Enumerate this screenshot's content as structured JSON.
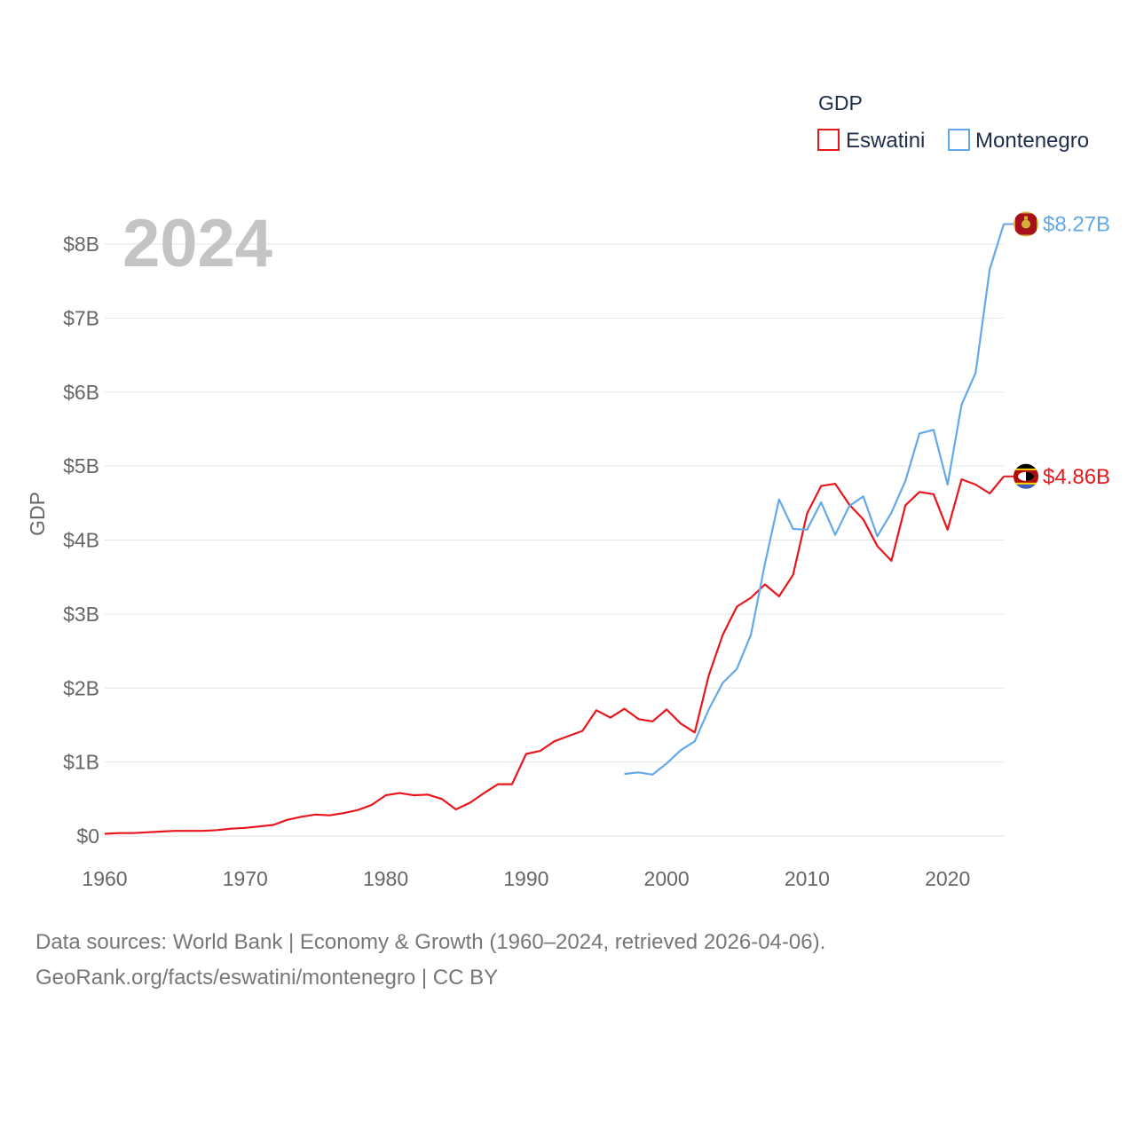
{
  "chart_data": {
    "type": "line",
    "title": "2024",
    "ylabel": "GDP",
    "xlabel": "",
    "xlim": [
      1960,
      2024
    ],
    "ylim": [
      0,
      8.3
    ],
    "x_ticks": [
      1960,
      1970,
      1980,
      1990,
      2000,
      2010,
      2020
    ],
    "x_tick_labels": [
      "1960",
      "1970",
      "1980",
      "1990",
      "2000",
      "2010",
      "2020"
    ],
    "y_ticks": [
      0,
      1,
      2,
      3,
      4,
      5,
      6,
      7,
      8
    ],
    "y_tick_labels": [
      "$0",
      "$1B",
      "$2B",
      "$3B",
      "$4B",
      "$5B",
      "$6B",
      "$7B",
      "$8B"
    ],
    "grid": true,
    "legend": {
      "title": "GDP",
      "position": "top-right"
    },
    "series": [
      {
        "name": "Eswatini",
        "color": "#e8161c",
        "end_label": "$4.86B",
        "flag_icon": "eswatini-flag-icon",
        "x": [
          1960,
          1961,
          1962,
          1963,
          1964,
          1965,
          1966,
          1967,
          1968,
          1969,
          1970,
          1971,
          1972,
          1973,
          1974,
          1975,
          1976,
          1977,
          1978,
          1979,
          1980,
          1981,
          1982,
          1983,
          1984,
          1985,
          1986,
          1987,
          1988,
          1989,
          1990,
          1991,
          1992,
          1993,
          1994,
          1995,
          1996,
          1997,
          1998,
          1999,
          2000,
          2001,
          2002,
          2003,
          2004,
          2005,
          2006,
          2007,
          2008,
          2009,
          2010,
          2011,
          2012,
          2013,
          2014,
          2015,
          2016,
          2017,
          2018,
          2019,
          2020,
          2021,
          2022,
          2023,
          2024
        ],
        "values": [
          0.03,
          0.04,
          0.04,
          0.05,
          0.06,
          0.07,
          0.07,
          0.07,
          0.08,
          0.1,
          0.11,
          0.13,
          0.15,
          0.22,
          0.26,
          0.29,
          0.28,
          0.31,
          0.35,
          0.42,
          0.55,
          0.58,
          0.55,
          0.56,
          0.5,
          0.36,
          0.45,
          0.58,
          0.7,
          0.7,
          1.11,
          1.15,
          1.28,
          1.35,
          1.42,
          1.7,
          1.6,
          1.72,
          1.58,
          1.55,
          1.71,
          1.52,
          1.4,
          2.17,
          2.72,
          3.1,
          3.22,
          3.4,
          3.24,
          3.53,
          4.36,
          4.73,
          4.76,
          4.48,
          4.28,
          3.92,
          3.72,
          4.47,
          4.65,
          4.62,
          4.14,
          4.82,
          4.75,
          4.63,
          4.86
        ]
      },
      {
        "name": "Montenegro",
        "color": "#63a8e8",
        "end_label": "$8.27B",
        "flag_icon": "montenegro-flag-icon",
        "x": [
          1997,
          1998,
          1999,
          2000,
          2001,
          2002,
          2003,
          2004,
          2005,
          2006,
          2007,
          2008,
          2009,
          2010,
          2011,
          2012,
          2013,
          2014,
          2015,
          2016,
          2017,
          2018,
          2019,
          2020,
          2021,
          2022,
          2023,
          2024
        ],
        "values": [
          0.84,
          0.86,
          0.83,
          0.98,
          1.16,
          1.28,
          1.71,
          2.07,
          2.26,
          2.72,
          3.68,
          4.55,
          4.15,
          4.14,
          4.51,
          4.07,
          4.46,
          4.59,
          4.05,
          4.37,
          4.8,
          5.44,
          5.49,
          4.75,
          5.83,
          6.26,
          7.66,
          8.27
        ]
      }
    ]
  },
  "footer": {
    "line1": "Data sources: World Bank | Economy & Growth (1960–2024, retrieved 2026-04-06).",
    "line2": "GeoRank.org/facts/eswatini/montenegro | CC BY"
  }
}
